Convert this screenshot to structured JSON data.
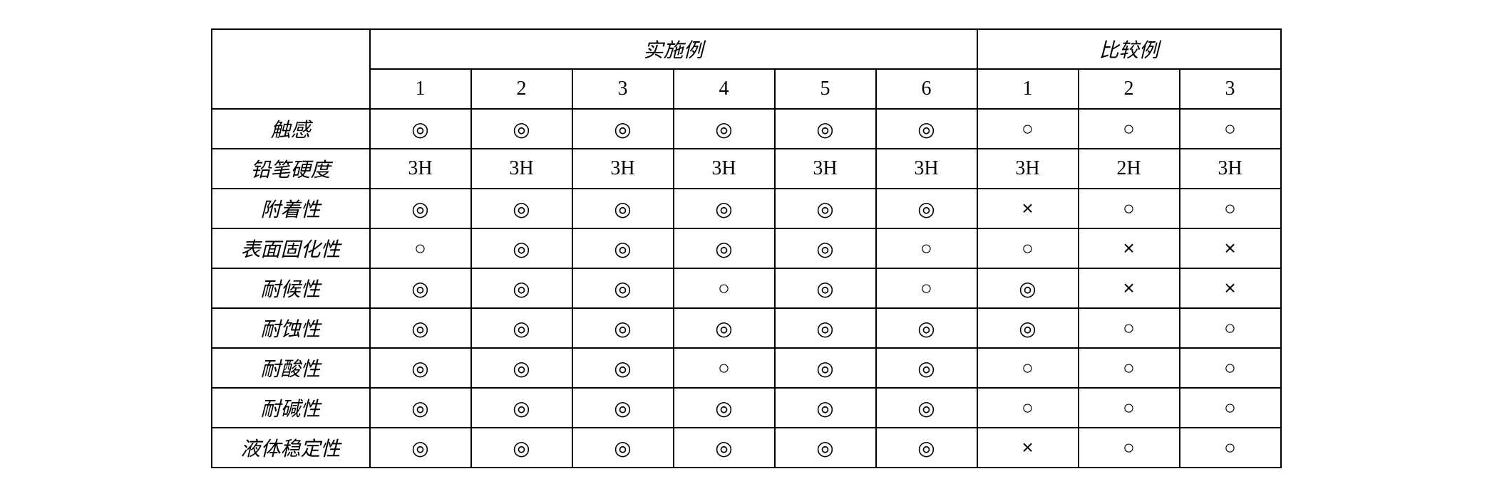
{
  "headers": {
    "group_a": "实施例",
    "group_b": "比较例",
    "cols_a": [
      "1",
      "2",
      "3",
      "4",
      "5",
      "6"
    ],
    "cols_b": [
      "1",
      "2",
      "3"
    ]
  },
  "symbols": {
    "excellent": "◎",
    "good": "○",
    "bad": "×"
  },
  "rows": [
    {
      "label": "触感",
      "cells": [
        "◎",
        "◎",
        "◎",
        "◎",
        "◎",
        "◎",
        "○",
        "○",
        "○"
      ]
    },
    {
      "label": "铅笔硬度",
      "cells": [
        "3H",
        "3H",
        "3H",
        "3H",
        "3H",
        "3H",
        "3H",
        "2H",
        "3H"
      ]
    },
    {
      "label": "附着性",
      "cells": [
        "◎",
        "◎",
        "◎",
        "◎",
        "◎",
        "◎",
        "×",
        "○",
        "○"
      ]
    },
    {
      "label": "表面固化性",
      "cells": [
        "○",
        "◎",
        "◎",
        "◎",
        "◎",
        "○",
        "○",
        "×",
        "×"
      ]
    },
    {
      "label": "耐候性",
      "cells": [
        "◎",
        "◎",
        "◎",
        "○",
        "◎",
        "○",
        "◎",
        "×",
        "×"
      ]
    },
    {
      "label": "耐蚀性",
      "cells": [
        "◎",
        "◎",
        "◎",
        "◎",
        "◎",
        "◎",
        "◎",
        "○",
        "○"
      ]
    },
    {
      "label": "耐酸性",
      "cells": [
        "◎",
        "◎",
        "◎",
        "○",
        "◎",
        "◎",
        "○",
        "○",
        "○"
      ]
    },
    {
      "label": "耐碱性",
      "cells": [
        "◎",
        "◎",
        "◎",
        "◎",
        "◎",
        "◎",
        "○",
        "○",
        "○"
      ]
    },
    {
      "label": "液体稳定性",
      "cells": [
        "◎",
        "◎",
        "◎",
        "◎",
        "◎",
        "◎",
        "×",
        "○",
        "○"
      ]
    }
  ]
}
